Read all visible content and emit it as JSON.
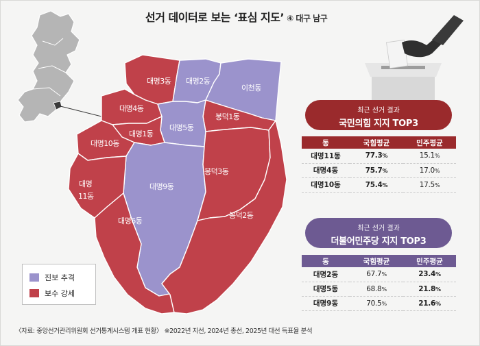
{
  "title": "선거 데이터로 보는 ‘표심 지도’",
  "subtitle": "④ 대구 남구",
  "colors": {
    "progressive": "#9b93cc",
    "conservative": "#c0414a",
    "inset": "#b5b5b5",
    "ppp_dark": "#9a2a2c",
    "dem_dark": "#6d5a92"
  },
  "districts": {
    "d3": "대명3동",
    "d2": "대명2동",
    "icheon": "이천동",
    "d4": "대명4동",
    "bongdeok1": "봉덕1동",
    "d1": "대명1동",
    "d5": "대명5동",
    "d10": "대명10동",
    "d9": "대명9동",
    "bongdeok3": "봉덕3동",
    "d11_line1": "대명",
    "d11_line2": "11동",
    "d6": "대명6동",
    "bongdeok2": "봉덕2동"
  },
  "legend": {
    "progressive_label": "진보 추격",
    "conservative_label": "보수 강세"
  },
  "ppp_panel": {
    "header_small": "최근 선거 결과",
    "header_big": "국민의힘 지지 TOP3",
    "columns": [
      "동",
      "국힘평균",
      "민주평균"
    ],
    "rows": [
      {
        "name": "대명11동",
        "ppp": "77.3",
        "dem": "15.1"
      },
      {
        "name": "대명4동",
        "ppp": "75.7",
        "dem": "17.0"
      },
      {
        "name": "대명10동",
        "ppp": "75.4",
        "dem": "17.5"
      }
    ],
    "unit": "%"
  },
  "dem_panel": {
    "header_small": "최근 선거 결과",
    "header_big": "더불어민주당 지지 TOP3",
    "columns": [
      "동",
      "국힘평균",
      "민주평균"
    ],
    "rows": [
      {
        "name": "대명2동",
        "ppp": "67.7",
        "dem": "23.4"
      },
      {
        "name": "대명5동",
        "ppp": "68.8",
        "dem": "21.8"
      },
      {
        "name": "대명9동",
        "ppp": "70.5",
        "dem": "21.6"
      }
    ],
    "unit": "%"
  },
  "source": "〈자료: 중앙선거관리위원회 선거통계시스템 개표 현황〉 ※2022년 지선, 2024년 총선, 2025년 대선 득표율 분석"
}
